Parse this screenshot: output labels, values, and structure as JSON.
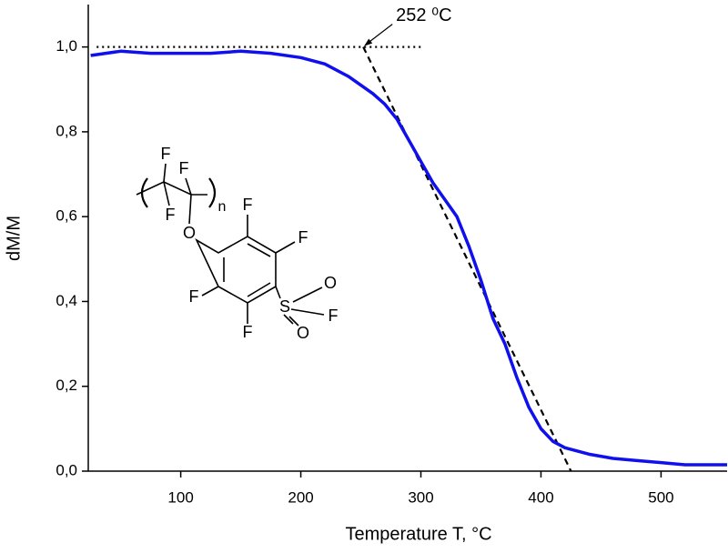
{
  "chart_data": {
    "type": "line",
    "xlabel": "Temperature T, °C",
    "ylabel": "dM/M",
    "xlim": [
      23,
      555
    ],
    "ylim": [
      0,
      1.1
    ],
    "xticks": [
      100,
      200,
      300,
      400,
      500
    ],
    "yticks": [
      {
        "value": 0,
        "label": "0,0"
      },
      {
        "value": 0.2,
        "label": "0,2"
      },
      {
        "value": 0.4,
        "label": "0,4"
      },
      {
        "value": 0.6,
        "label": "0,6"
      },
      {
        "value": 0.8,
        "label": "0,8"
      },
      {
        "value": 1.0,
        "label": "1,0"
      }
    ],
    "series": [
      {
        "color": "#1010ee",
        "x": [
          25,
          50,
          75,
          100,
          125,
          150,
          175,
          200,
          220,
          240,
          260,
          270,
          280,
          290,
          300,
          310,
          320,
          330,
          340,
          350,
          360,
          370,
          380,
          390,
          400,
          410,
          420,
          440,
          460,
          480,
          500,
          520,
          540,
          555
        ],
        "values": [
          0.98,
          0.99,
          0.985,
          0.985,
          0.985,
          0.99,
          0.985,
          0.975,
          0.96,
          0.93,
          0.89,
          0.865,
          0.83,
          0.78,
          0.73,
          0.68,
          0.64,
          0.6,
          0.53,
          0.45,
          0.36,
          0.3,
          0.22,
          0.15,
          0.1,
          0.07,
          0.055,
          0.04,
          0.03,
          0.025,
          0.02,
          0.015,
          0.015,
          0.015
        ]
      }
    ],
    "baseline": {
      "x": [
        30,
        300
      ],
      "y": [
        1.0,
        1.0
      ]
    },
    "tangent": {
      "x": [
        252,
        425
      ],
      "y": [
        1.0,
        0.0
      ]
    },
    "annotation": {
      "text": "252 ⁰C",
      "x": 252,
      "y": 1.0
    },
    "structure": {
      "atoms": [
        "F",
        "F",
        "F",
        "O",
        "F",
        "F",
        "F",
        "F",
        "S",
        "O",
        "O",
        "F"
      ],
      "subscript": "n"
    }
  }
}
